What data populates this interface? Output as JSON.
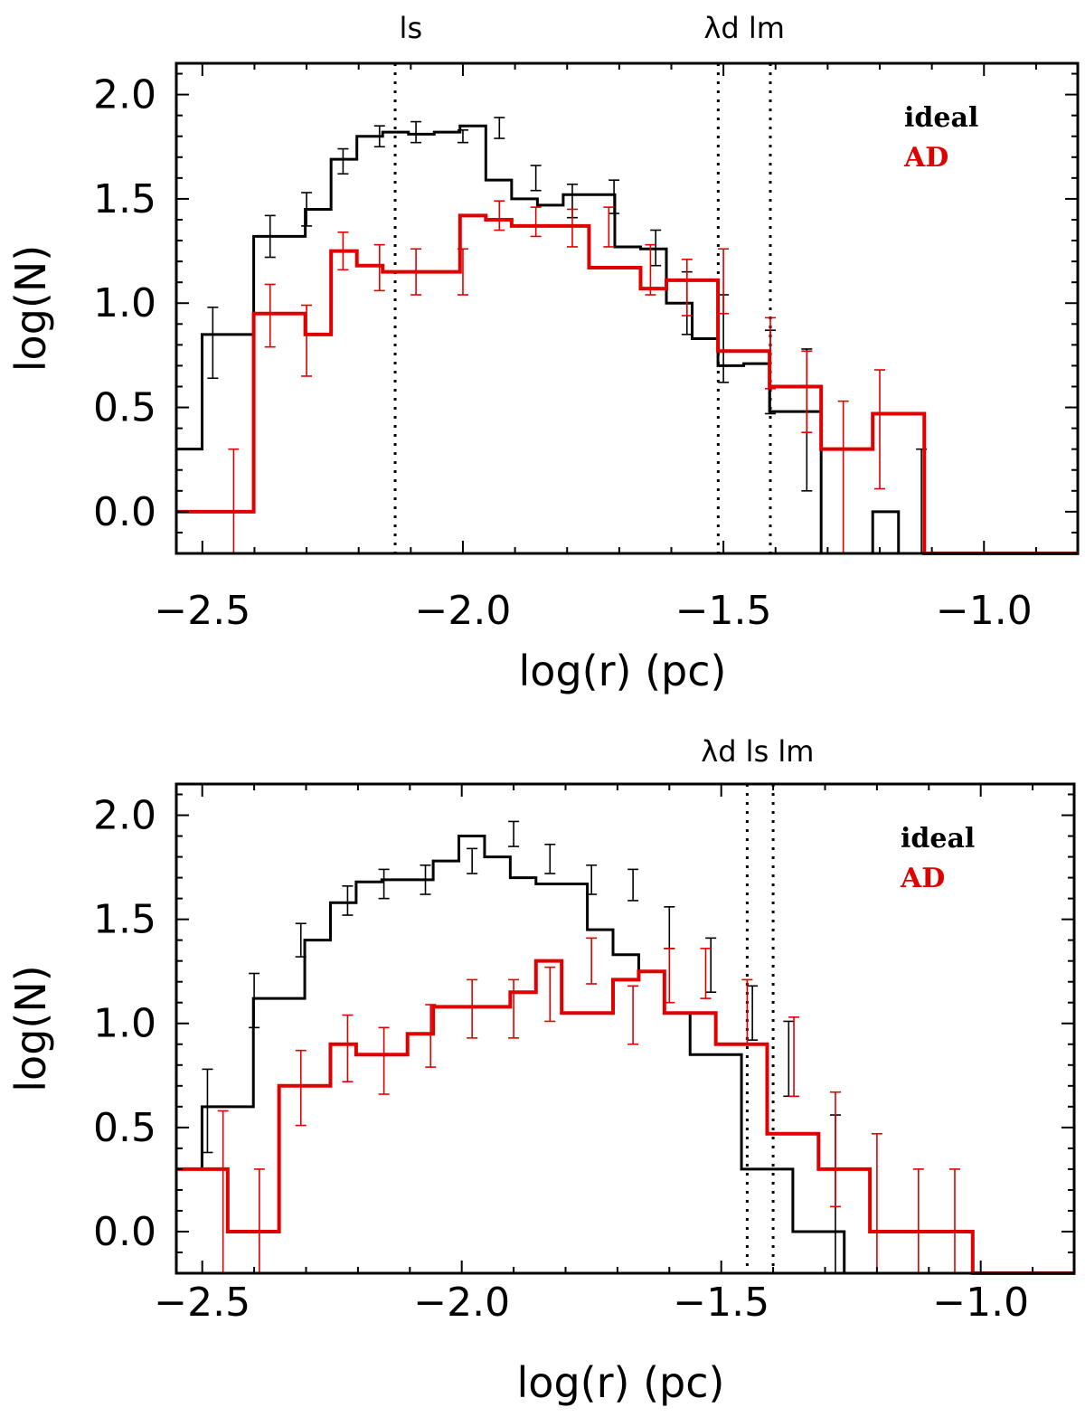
{
  "chart_data": [
    {
      "type": "histogram",
      "name": "top",
      "xlabel": "log(r) (pc)",
      "ylabel": "log(N)",
      "xlim": [
        -2.55,
        -0.82
      ],
      "ylim": [
        -0.2,
        2.15
      ],
      "xticks": [
        -2.5,
        -2.0,
        -1.5,
        -1.0
      ],
      "xtick_labels": [
        "−2.5",
        "−2.0",
        "−1.5",
        "−1.0"
      ],
      "yticks": [
        0.0,
        0.5,
        1.0,
        1.5,
        2.0
      ],
      "ytick_labels": [
        "0.0",
        "0.5",
        "1.0",
        "1.5",
        "2.0"
      ],
      "legend": [
        {
          "label": "ideal",
          "color": "#000000"
        },
        {
          "label": "AD",
          "color": "#e00000"
        }
      ],
      "markers": [
        {
          "label": "ls",
          "x": -2.13
        },
        {
          "label": "λd",
          "x": -1.51
        },
        {
          "label": "lm",
          "x": -1.41
        }
      ],
      "marker_labels": [
        {
          "text": "ls",
          "x": -2.1
        },
        {
          "text": "λd lm",
          "x": -1.46
        }
      ],
      "series": [
        {
          "name": "ideal",
          "color": "#000000",
          "stroke": 3,
          "bin_start": -2.55,
          "bin_width": 0.0495,
          "values": [
            0.3,
            0.85,
            0.85,
            1.32,
            1.32,
            1.45,
            1.69,
            1.8,
            1.82,
            1.81,
            1.82,
            1.85,
            1.59,
            1.5,
            1.47,
            1.52,
            1.52,
            1.27,
            1.26,
            1.0,
            0.83,
            0.7,
            0.71,
            0.48,
            0.48,
            -0.2,
            -0.2,
            0.0,
            -0.2,
            -0.2,
            -0.2,
            -0.2,
            -0.2,
            -0.2,
            -0.2
          ],
          "errorbars": [
            {
              "x": -2.48,
              "lo": 0.64,
              "hi": 0.98
            },
            {
              "x": -2.37,
              "lo": 1.22,
              "hi": 1.42
            },
            {
              "x": -2.3,
              "lo": 1.37,
              "hi": 1.53
            },
            {
              "x": -2.23,
              "lo": 1.62,
              "hi": 1.74
            },
            {
              "x": -2.16,
              "lo": 1.75,
              "hi": 1.85
            },
            {
              "x": -2.09,
              "lo": 1.77,
              "hi": 1.87
            },
            {
              "x": -2.0,
              "lo": 1.77,
              "hi": 1.83
            },
            {
              "x": -1.93,
              "lo": 1.79,
              "hi": 1.89
            },
            {
              "x": -1.86,
              "lo": 1.54,
              "hi": 1.66
            },
            {
              "x": -1.79,
              "lo": 1.41,
              "hi": 1.57
            },
            {
              "x": -1.71,
              "lo": 1.43,
              "hi": 1.59
            },
            {
              "x": -1.63,
              "lo": 1.18,
              "hi": 1.35
            },
            {
              "x": -1.57,
              "lo": 0.85,
              "hi": 1.15
            },
            {
              "x": -1.5,
              "lo": 0.62,
              "hi": 1.04
            },
            {
              "x": -1.41,
              "lo": 0.47,
              "hi": 0.87
            },
            {
              "x": -1.34,
              "lo": 0.1,
              "hi": 0.78
            },
            {
              "x": -1.12,
              "lo": -0.2,
              "hi": 0.3
            }
          ]
        },
        {
          "name": "AD",
          "color": "#e00000",
          "stroke": 4,
          "bin_start": -2.55,
          "bin_width": 0.0495,
          "values": [
            0.0,
            0.0,
            0.0,
            0.95,
            0.95,
            0.85,
            1.25,
            1.18,
            1.15,
            1.15,
            1.15,
            1.42,
            1.4,
            1.37,
            1.37,
            1.37,
            1.17,
            1.17,
            1.07,
            1.11,
            1.11,
            0.77,
            0.77,
            0.6,
            0.6,
            0.3,
            0.3,
            0.47,
            0.47,
            -0.2,
            -0.2,
            -0.2,
            -0.2,
            -0.2,
            -0.2
          ],
          "errorbars": [
            {
              "x": -2.44,
              "lo": -0.2,
              "hi": 0.3
            },
            {
              "x": -2.37,
              "lo": 0.79,
              "hi": 1.09
            },
            {
              "x": -2.3,
              "lo": 0.65,
              "hi": 0.99
            },
            {
              "x": -2.23,
              "lo": 1.16,
              "hi": 1.34
            },
            {
              "x": -2.16,
              "lo": 1.06,
              "hi": 1.28
            },
            {
              "x": -2.09,
              "lo": 1.04,
              "hi": 1.26
            },
            {
              "x": -2.0,
              "lo": 1.04,
              "hi": 1.26
            },
            {
              "x": -1.93,
              "lo": 1.35,
              "hi": 1.49
            },
            {
              "x": -1.86,
              "lo": 1.32,
              "hi": 1.46
            },
            {
              "x": -1.79,
              "lo": 1.27,
              "hi": 1.45
            },
            {
              "x": -1.72,
              "lo": 1.27,
              "hi": 1.46
            },
            {
              "x": -1.64,
              "lo": 1.04,
              "hi": 1.28
            },
            {
              "x": -1.57,
              "lo": 0.94,
              "hi": 1.21
            },
            {
              "x": -1.5,
              "lo": 0.95,
              "hi": 1.26
            },
            {
              "x": -1.41,
              "lo": 0.59,
              "hi": 0.93
            },
            {
              "x": -1.34,
              "lo": 0.38,
              "hi": 0.77
            },
            {
              "x": -1.27,
              "lo": -0.2,
              "hi": 0.53
            },
            {
              "x": -1.2,
              "lo": 0.11,
              "hi": 0.68
            }
          ]
        }
      ]
    },
    {
      "type": "histogram",
      "name": "bottom",
      "xlabel": "log(r) (pc)",
      "ylabel": "log(N)",
      "xlim": [
        -2.55,
        -0.82
      ],
      "ylim": [
        -0.2,
        2.15
      ],
      "xticks": [
        -2.5,
        -2.0,
        -1.5,
        -1.0
      ],
      "xtick_labels": [
        "−2.5",
        "−2.0",
        "−1.5",
        "−1.0"
      ],
      "yticks": [
        0.0,
        0.5,
        1.0,
        1.5,
        2.0
      ],
      "ytick_labels": [
        "0.0",
        "0.5",
        "1.0",
        "1.5",
        "2.0"
      ],
      "legend": [
        {
          "label": "ideal",
          "color": "#000000"
        },
        {
          "label": "AD",
          "color": "#e00000"
        }
      ],
      "markers": [
        {
          "label": "λd ls",
          "x": -1.45
        },
        {
          "label": "lm",
          "x": -1.4
        }
      ],
      "marker_labels": [
        {
          "text": "λd ls lm",
          "x": -1.43
        }
      ],
      "series": [
        {
          "name": "ideal",
          "color": "#000000",
          "stroke": 3,
          "bin_start": -2.55,
          "bin_width": 0.0495,
          "values": [
            0.3,
            0.6,
            0.6,
            1.12,
            1.12,
            1.4,
            1.58,
            1.68,
            1.69,
            1.69,
            1.78,
            1.9,
            1.8,
            1.7,
            1.67,
            1.67,
            1.45,
            1.33,
            1.25,
            1.05,
            0.85,
            0.85,
            0.3,
            0.3,
            0.0,
            0.0,
            -0.2,
            -0.2,
            -0.2,
            -0.2,
            -0.2,
            -0.2,
            -0.2,
            -0.2,
            -0.2
          ],
          "errorbars": [
            {
              "x": -2.49,
              "lo": 0.38,
              "hi": 0.78
            },
            {
              "x": -2.4,
              "lo": 0.98,
              "hi": 1.24
            },
            {
              "x": -2.31,
              "lo": 1.32,
              "hi": 1.48
            },
            {
              "x": -2.22,
              "lo": 1.52,
              "hi": 1.66
            },
            {
              "x": -2.15,
              "lo": 1.6,
              "hi": 1.74
            },
            {
              "x": -2.07,
              "lo": 1.62,
              "hi": 1.76
            },
            {
              "x": -1.98,
              "lo": 1.72,
              "hi": 1.84
            },
            {
              "x": -1.9,
              "lo": 1.85,
              "hi": 1.97
            },
            {
              "x": -1.83,
              "lo": 1.72,
              "hi": 1.86
            },
            {
              "x": -1.75,
              "lo": 1.62,
              "hi": 1.76
            },
            {
              "x": -1.67,
              "lo": 1.59,
              "hi": 1.74
            },
            {
              "x": -1.6,
              "lo": 1.36,
              "hi": 1.56
            },
            {
              "x": -1.52,
              "lo": 1.15,
              "hi": 1.41
            },
            {
              "x": -1.44,
              "lo": 0.92,
              "hi": 1.18
            },
            {
              "x": -1.37,
              "lo": 0.65,
              "hi": 1.01
            },
            {
              "x": -1.28,
              "lo": -0.2,
              "hi": 0.56
            }
          ]
        },
        {
          "name": "AD",
          "color": "#e00000",
          "stroke": 4,
          "bin_start": -2.55,
          "bin_width": 0.0495,
          "values": [
            0.3,
            0.3,
            0.0,
            0.0,
            0.7,
            0.7,
            0.9,
            0.85,
            0.85,
            0.95,
            1.08,
            1.08,
            1.08,
            1.15,
            1.3,
            1.05,
            1.05,
            1.21,
            1.25,
            1.05,
            1.05,
            0.9,
            0.9,
            0.47,
            0.47,
            0.3,
            0.3,
            0.0,
            0.0,
            0.0,
            0.0,
            -0.2,
            -0.2,
            -0.2,
            -0.2
          ],
          "errorbars": [
            {
              "x": -2.46,
              "lo": -0.2,
              "hi": 0.58
            },
            {
              "x": -2.39,
              "lo": -0.2,
              "hi": 0.3
            },
            {
              "x": -2.31,
              "lo": 0.51,
              "hi": 0.87
            },
            {
              "x": -2.22,
              "lo": 0.72,
              "hi": 1.04
            },
            {
              "x": -2.15,
              "lo": 0.66,
              "hi": 0.98
            },
            {
              "x": -2.06,
              "lo": 0.79,
              "hi": 1.09
            },
            {
              "x": -1.98,
              "lo": 0.93,
              "hi": 1.21
            },
            {
              "x": -1.9,
              "lo": 0.93,
              "hi": 1.21
            },
            {
              "x": -1.83,
              "lo": 1.01,
              "hi": 1.27
            },
            {
              "x": -1.75,
              "lo": 1.19,
              "hi": 1.41
            },
            {
              "x": -1.67,
              "lo": 0.9,
              "hi": 1.18
            },
            {
              "x": -1.6,
              "lo": 1.1,
              "hi": 1.36
            },
            {
              "x": -1.53,
              "lo": 1.12,
              "hi": 1.36
            },
            {
              "x": -1.45,
              "lo": 0.9,
              "hi": 1.21
            },
            {
              "x": -1.36,
              "lo": 0.65,
              "hi": 1.03
            },
            {
              "x": -1.28,
              "lo": 0.12,
              "hi": 0.67
            },
            {
              "x": -1.2,
              "lo": -0.2,
              "hi": 0.47
            },
            {
              "x": -1.12,
              "lo": -0.2,
              "hi": 0.3
            },
            {
              "x": -1.05,
              "lo": -0.2,
              "hi": 0.3
            }
          ]
        }
      ]
    }
  ]
}
